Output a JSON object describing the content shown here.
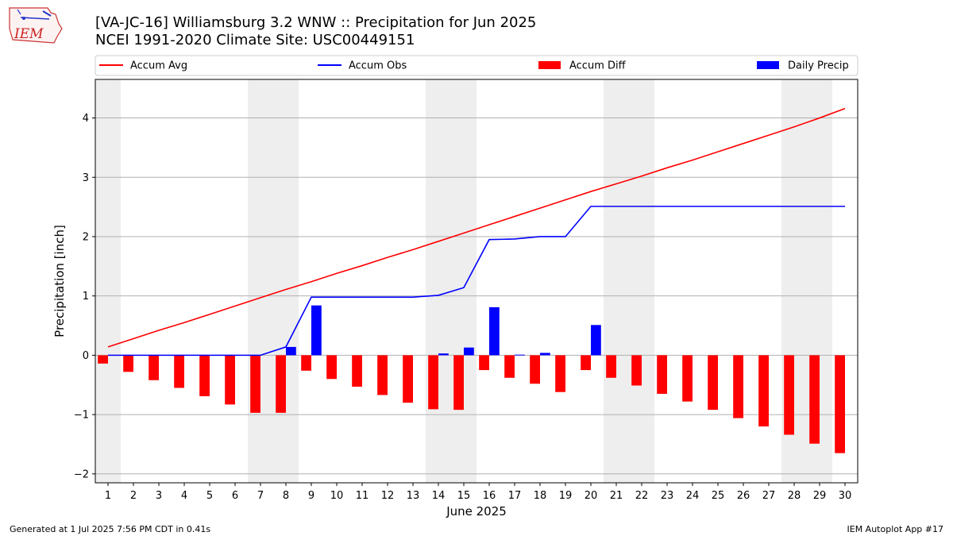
{
  "header": {
    "title_line1": "[VA-JC-16] Williamsburg 3.2 WNW :: Precipitation for Jun 2025",
    "title_line2": "NCEI 1991-2020 Climate Site: USC00449151"
  },
  "logo": {
    "text": "IEM"
  },
  "footer": {
    "left": "Generated at 1 Jul 2025 7:56 PM CDT in 0.41s",
    "right": "IEM Autoplot App #17"
  },
  "colors": {
    "avg": "#ff0000",
    "obs": "#0000ff",
    "diff": "#ff0000",
    "daily": "#0000ff",
    "weekend": "#eeeeee"
  },
  "chart_data": {
    "type": "bar",
    "xlabel": "June 2025",
    "ylabel": "Precipitation [inch]",
    "xlim": [
      0.5,
      30.5
    ],
    "ylim": [
      -2.15,
      4.65
    ],
    "yticks": [
      -2,
      -1,
      0,
      1,
      2,
      3,
      4
    ],
    "ytick_labels": [
      "−2",
      "−1",
      "0",
      "1",
      "2",
      "3",
      "4"
    ],
    "grid": "horizontal",
    "legend_position": "top",
    "weekend_days": [
      1,
      7,
      8,
      14,
      15,
      21,
      22,
      28,
      29
    ],
    "days": [
      1,
      2,
      3,
      4,
      5,
      6,
      7,
      8,
      9,
      10,
      11,
      12,
      13,
      14,
      15,
      16,
      17,
      18,
      19,
      20,
      21,
      22,
      23,
      24,
      25,
      26,
      27,
      28,
      29,
      30
    ],
    "series": [
      {
        "name": "Accum Avg",
        "kind": "line",
        "values": [
          0.14,
          0.28,
          0.42,
          0.55,
          0.69,
          0.83,
          0.97,
          1.11,
          1.24,
          1.38,
          1.51,
          1.65,
          1.78,
          1.92,
          2.06,
          2.2,
          2.34,
          2.48,
          2.62,
          2.76,
          2.89,
          3.02,
          3.16,
          3.29,
          3.43,
          3.57,
          3.71,
          3.85,
          4.0,
          4.16
        ]
      },
      {
        "name": "Accum Obs",
        "kind": "line",
        "values": [
          0,
          0,
          0,
          0,
          0,
          0,
          0,
          0.14,
          0.98,
          0.98,
          0.98,
          0.98,
          0.98,
          1.01,
          1.14,
          1.95,
          1.96,
          2.0,
          2.0,
          2.51,
          2.51,
          2.51,
          2.51,
          2.51,
          2.51,
          2.51,
          2.51,
          2.51,
          2.51,
          2.51
        ]
      },
      {
        "name": "Accum Diff",
        "kind": "bar",
        "values": [
          -0.14,
          -0.28,
          -0.42,
          -0.55,
          -0.69,
          -0.83,
          -0.97,
          -0.97,
          -0.26,
          -0.4,
          -0.53,
          -0.67,
          -0.8,
          -0.91,
          -0.92,
          -0.25,
          -0.38,
          -0.48,
          -0.62,
          -0.25,
          -0.38,
          -0.51,
          -0.65,
          -0.78,
          -0.92,
          -1.06,
          -1.2,
          -1.34,
          -1.49,
          -1.65
        ]
      },
      {
        "name": "Daily Precip",
        "kind": "bar",
        "values": [
          0,
          0,
          0,
          0,
          0,
          0,
          0,
          0.14,
          0.84,
          0,
          0,
          0,
          0,
          0.03,
          0.13,
          0.81,
          0.01,
          0.04,
          0,
          0.51,
          0,
          0,
          0,
          0,
          0,
          0,
          0,
          0,
          0,
          0
        ]
      }
    ]
  }
}
